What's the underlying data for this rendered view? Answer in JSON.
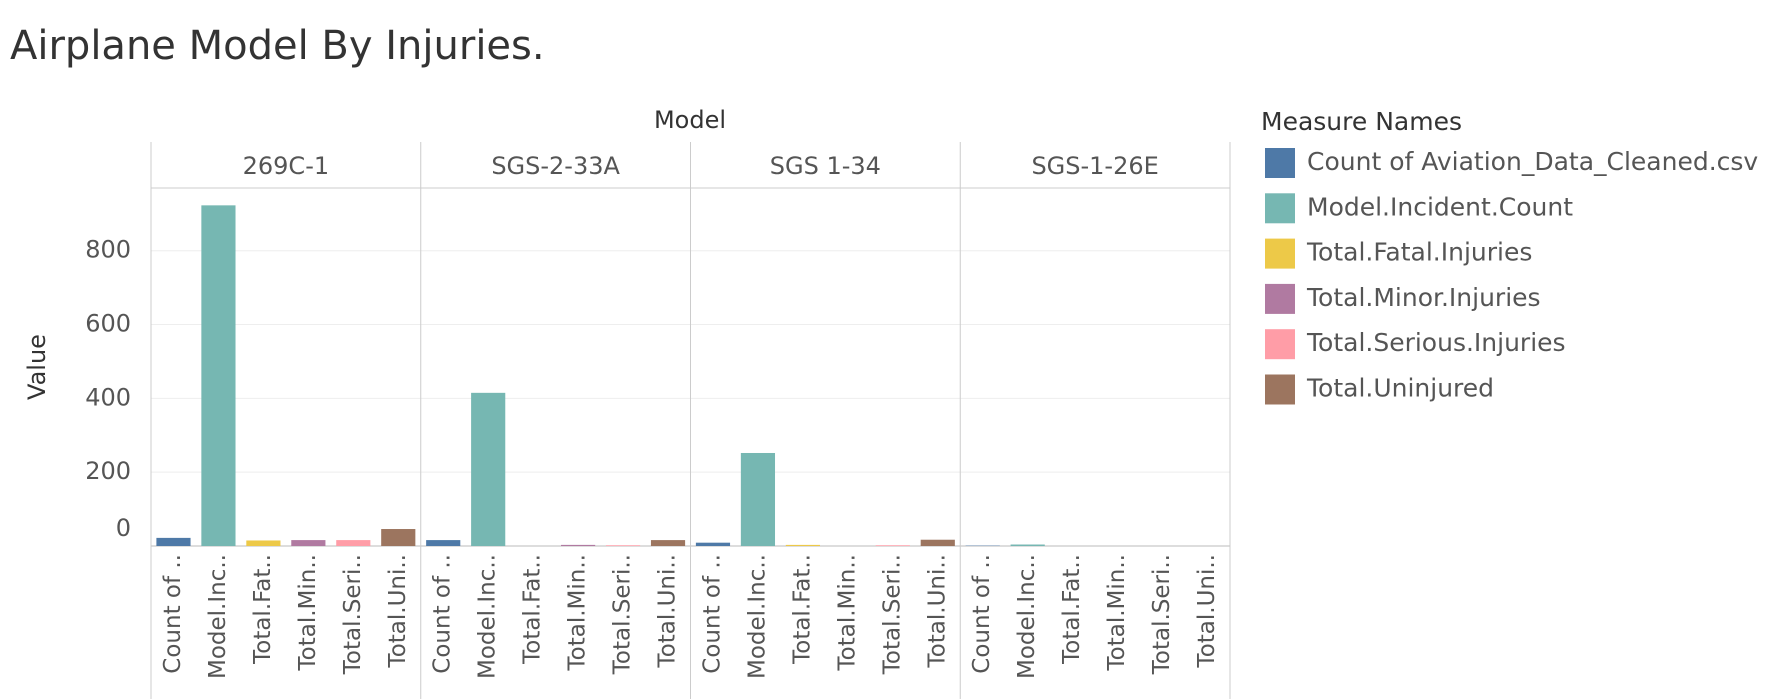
{
  "chart_data": {
    "type": "bar",
    "title": "Airplane Model By Injuries.",
    "column_header": "Model",
    "y_label": "Value",
    "legend_title": "Measure Names",
    "categories": [
      "269C-1",
      "SGS-2-33A",
      "SGS 1-34",
      "SGS-1-26E"
    ],
    "measure_labels": [
      "Count of ..",
      "Model.Inc..",
      "Total.Fat..",
      "Total.Min..",
      "Total.Seri..",
      "Total.Uni.."
    ],
    "series": [
      {
        "name": "Count of Aviation_Data_Cleaned.csv",
        "color": "#4e79a7",
        "values": [
          22,
          16,
          9,
          1
        ]
      },
      {
        "name": "Model.Incident.Count",
        "color": "#76b7b2",
        "values": [
          923,
          415,
          252,
          4
        ]
      },
      {
        "name": "Total.Fatal.Injuries",
        "color": "#edc948",
        "values": [
          15,
          0,
          3,
          0
        ]
      },
      {
        "name": "Total.Minor.Injuries",
        "color": "#b07aa1",
        "values": [
          16,
          3,
          0,
          0
        ]
      },
      {
        "name": "Total.Serious.Injuries",
        "color": "#ff9da7",
        "values": [
          16,
          2,
          2,
          0
        ]
      },
      {
        "name": "Total.Uninjured",
        "color": "#9c755f",
        "values": [
          46,
          16,
          17,
          0
        ]
      }
    ],
    "ylim": [
      0,
      970
    ],
    "yticks": [
      0,
      200,
      400,
      600,
      800
    ],
    "grid": true
  }
}
